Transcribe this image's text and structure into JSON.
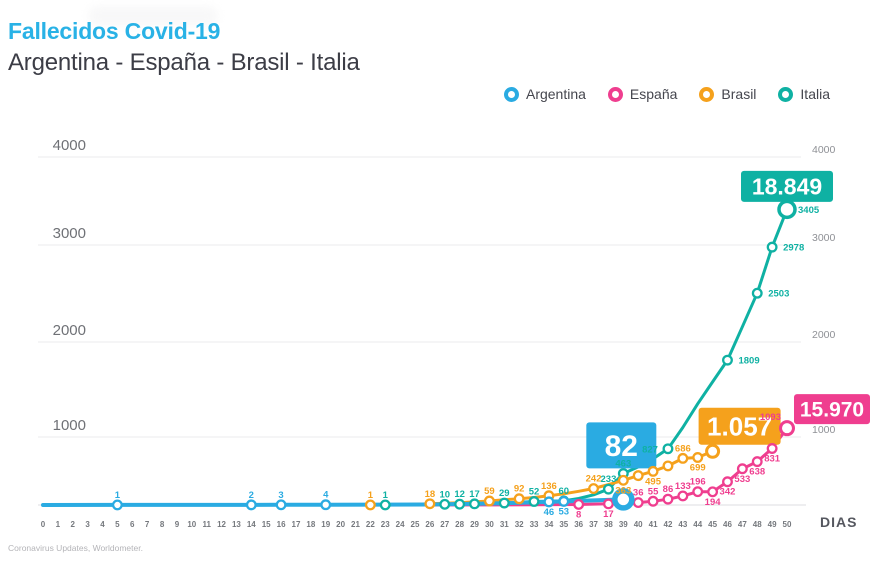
{
  "header": {
    "title": "Fallecidos Covid-19",
    "subtitle": "Argentina - España - Brasil - Italia"
  },
  "legend": {
    "items": [
      {
        "id": "argentina",
        "label": "Argentina",
        "color": "#2aabe2"
      },
      {
        "id": "espana",
        "label": "España",
        "color": "#ef3e8f"
      },
      {
        "id": "brasil",
        "label": "Brasil",
        "color": "#f5a11c"
      },
      {
        "id": "italia",
        "label": "Italia",
        "color": "#0fb1a3"
      }
    ]
  },
  "footer": {
    "source": "Coronavirus Updates, Worldometer."
  },
  "chart_data": {
    "type": "line",
    "title": "Fallecidos Covid-19",
    "xlabel": "DIAS",
    "ylabel": "",
    "ylim": [
      0,
      4000
    ],
    "y_ticks": [
      1000,
      2000,
      3000,
      4000
    ],
    "x_ticks": [
      0,
      1,
      2,
      3,
      4,
      5,
      6,
      7,
      8,
      9,
      10,
      11,
      12,
      13,
      14,
      15,
      16,
      17,
      18,
      19,
      20,
      21,
      22,
      23,
      24,
      25,
      26,
      27,
      28,
      29,
      30,
      31,
      32,
      33,
      34,
      35,
      36,
      37,
      38,
      39,
      40,
      41,
      42,
      43,
      44,
      45,
      46,
      47,
      48,
      49,
      50
    ],
    "grid": true,
    "legend_position": "top-right",
    "series": [
      {
        "id": "italia",
        "name": "Italia",
        "color": "#0fb1a3",
        "callout": "18.849",
        "points": [
          {
            "d": 0,
            "v": 0
          },
          {
            "d": 20,
            "v": 0
          },
          {
            "d": 23,
            "v": 1,
            "l": "1",
            "lp": "a"
          },
          {
            "d": 25,
            "v": 6
          },
          {
            "d": 27,
            "v": 10,
            "l": "10",
            "lp": "a"
          },
          {
            "d": 28,
            "v": 12,
            "l": "12",
            "lp": "a"
          },
          {
            "d": 29,
            "v": 17,
            "l": "17",
            "lp": "a"
          },
          {
            "d": 30,
            "v": 21
          },
          {
            "d": 31,
            "v": 29,
            "l": "29",
            "lp": "a"
          },
          {
            "d": 32,
            "v": 41
          },
          {
            "d": 33,
            "v": 52,
            "l": "52",
            "lp": "a"
          },
          {
            "d": 35,
            "v": 60,
            "l": "60",
            "lp": "a"
          },
          {
            "d": 36,
            "v": 95
          },
          {
            "d": 37,
            "v": 150
          },
          {
            "d": 38,
            "v": 233,
            "l": "233",
            "lp": "a"
          },
          {
            "d": 39,
            "v": 463,
            "l": "463",
            "lp": "a"
          },
          {
            "d": 40,
            "v": 560
          },
          {
            "d": 41,
            "v": 680
          },
          {
            "d": 42,
            "v": 827,
            "l": "827",
            "lp": "l"
          },
          {
            "d": 43,
            "v": 1100
          },
          {
            "d": 44,
            "v": 1350
          },
          {
            "d": 45,
            "v": 1580
          },
          {
            "d": 46,
            "v": 1809,
            "l": "1809",
            "lp": "r"
          },
          {
            "d": 47,
            "v": 2158
          },
          {
            "d": 48,
            "v": 2503,
            "l": "2503",
            "lp": "r"
          },
          {
            "d": 49,
            "v": 2978,
            "l": "2978",
            "lp": "r"
          },
          {
            "d": 50,
            "v": 3405,
            "l": "3405",
            "lp": "r",
            "end": true
          }
        ]
      },
      {
        "id": "brasil",
        "name": "Brasil",
        "color": "#f5a11c",
        "callout": "1.057",
        "points": [
          {
            "d": 18,
            "v": 0
          },
          {
            "d": 22,
            "v": 1,
            "l": "1",
            "lp": "a"
          },
          {
            "d": 24,
            "v": 4
          },
          {
            "d": 26,
            "v": 18,
            "l": "18",
            "lp": "a"
          },
          {
            "d": 28,
            "v": 34
          },
          {
            "d": 30,
            "v": 59,
            "l": "59",
            "lp": "a"
          },
          {
            "d": 31,
            "v": 77
          },
          {
            "d": 32,
            "v": 92,
            "l": "92",
            "lp": "a"
          },
          {
            "d": 33,
            "v": 111
          },
          {
            "d": 34,
            "v": 136,
            "l": "136",
            "lp": "a"
          },
          {
            "d": 35,
            "v": 165
          },
          {
            "d": 36,
            "v": 201
          },
          {
            "d": 37,
            "v": 242,
            "l": "242",
            "lp": "a"
          },
          {
            "d": 38,
            "v": 300
          },
          {
            "d": 39,
            "v": 363,
            "l": "363",
            "lp": "b"
          },
          {
            "d": 40,
            "v": 432,
            "m": 1
          },
          {
            "d": 41,
            "v": 495,
            "l": "495",
            "lp": "b"
          },
          {
            "d": 42,
            "v": 575,
            "m": 1
          },
          {
            "d": 43,
            "v": 686,
            "l": "686",
            "lp": "a"
          },
          {
            "d": 44,
            "v": 699,
            "l": "699",
            "lp": "b"
          },
          {
            "d": 45,
            "v": 790,
            "end": true
          }
        ]
      },
      {
        "id": "espana",
        "name": "España",
        "color": "#ef3e8f",
        "callout": "15.970",
        "points": [
          {
            "d": 25,
            "v": 0
          },
          {
            "d": 33,
            "v": 3
          },
          {
            "d": 36,
            "v": 8,
            "l": "8",
            "lp": "b"
          },
          {
            "d": 38,
            "v": 17,
            "l": "17",
            "lp": "b"
          },
          {
            "d": 40,
            "v": 36,
            "l": "36",
            "lp": "a"
          },
          {
            "d": 41,
            "v": 55,
            "l": "55",
            "lp": "a"
          },
          {
            "d": 42,
            "v": 86,
            "l": "86",
            "lp": "a"
          },
          {
            "d": 43,
            "v": 133,
            "l": "133",
            "lp": "a"
          },
          {
            "d": 44,
            "v": 196,
            "l": "196",
            "lp": "a"
          },
          {
            "d": 45,
            "v": 194,
            "l": "194",
            "lp": "b"
          },
          {
            "d": 46,
            "v": 342,
            "l": "342",
            "lp": "b"
          },
          {
            "d": 47,
            "v": 533,
            "l": "533",
            "lp": "b"
          },
          {
            "d": 48,
            "v": 638,
            "l": "638",
            "lp": "b"
          },
          {
            "d": 49,
            "v": 831,
            "l": "831",
            "lp": "b"
          },
          {
            "d": 50,
            "v": 1093,
            "l": "1093",
            "lp": "al",
            "end": true
          }
        ]
      },
      {
        "id": "argentina",
        "name": "Argentina",
        "color": "#2aabe2",
        "callout": "82",
        "points": [
          {
            "d": 0,
            "v": 0
          },
          {
            "d": 5,
            "v": 1,
            "l": "1",
            "lp": "a"
          },
          {
            "d": 14,
            "v": 2,
            "l": "2",
            "lp": "a"
          },
          {
            "d": 16,
            "v": 3,
            "l": "3",
            "lp": "a"
          },
          {
            "d": 19,
            "v": 4,
            "l": "4",
            "lp": "a"
          },
          {
            "d": 26,
            "v": 8
          },
          {
            "d": 31,
            "v": 25
          },
          {
            "d": 34,
            "v": 46,
            "l": "46",
            "lp": "b"
          },
          {
            "d": 35,
            "v": 53,
            "l": "53",
            "lp": "b"
          },
          {
            "d": 39,
            "v": 82,
            "end": true
          }
        ]
      }
    ]
  }
}
